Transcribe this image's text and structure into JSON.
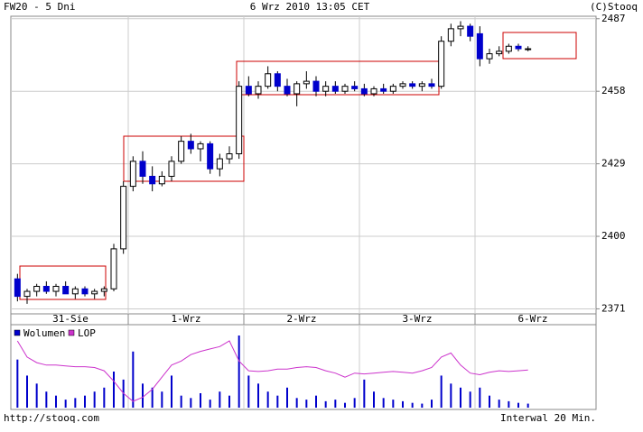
{
  "chart_data": {
    "type": "candlestick",
    "label_left": "FW20 - 5 Dni",
    "title": "6 Wrz 2010 13:05 CET",
    "label_right": "(C)Stooq",
    "footer_left": "http://stooq.com",
    "footer_right": "Interwal 20 Min.",
    "categories": [
      "31-Sie",
      "1-Wrz",
      "2-Wrz",
      "3-Wrz",
      "6-Wrz"
    ],
    "ylim": [
      2369,
      2488
    ],
    "yticks": [
      2371,
      2400,
      2429,
      2458,
      2487
    ],
    "grid": true,
    "up_color": "#ffffff",
    "down_color": "#0000cc",
    "open": [
      2383,
      2376,
      2378,
      2380,
      2378,
      2380,
      2377,
      2379,
      2377,
      2378,
      2379,
      2395,
      2420,
      2430,
      2424,
      2421,
      2424,
      2430,
      2438,
      2435,
      2437,
      2427,
      2431,
      2433,
      2460,
      2457,
      2460,
      2465,
      2460,
      2457,
      2461,
      2462,
      2458,
      2460,
      2458,
      2460,
      2459,
      2457,
      2459,
      2458,
      2460,
      2461,
      2460,
      2461,
      2460,
      2478,
      2483,
      2484,
      2481,
      2471,
      2473,
      2474,
      2476,
      2475
    ],
    "high": [
      2385,
      2379,
      2381,
      2382,
      2381,
      2382,
      2380,
      2380,
      2379,
      2380,
      2397,
      2422,
      2432,
      2434,
      2428,
      2426,
      2432,
      2440,
      2441,
      2438,
      2438,
      2433,
      2436,
      2462,
      2464,
      2462,
      2468,
      2466,
      2463,
      2462,
      2466,
      2464,
      2462,
      2462,
      2461,
      2462,
      2461,
      2460,
      2461,
      2461,
      2462,
      2462,
      2462,
      2463,
      2480,
      2485,
      2486,
      2485,
      2484,
      2475,
      2476,
      2477,
      2477,
      2476
    ],
    "low": [
      2374,
      2373,
      2376,
      2377,
      2376,
      2377,
      2375,
      2376,
      2375,
      2376,
      2378,
      2393,
      2418,
      2421,
      2418,
      2420,
      2422,
      2429,
      2433,
      2430,
      2425,
      2424,
      2429,
      2431,
      2456,
      2455,
      2459,
      2458,
      2456,
      2452,
      2459,
      2456,
      2456,
      2457,
      2457,
      2458,
      2456,
      2456,
      2457,
      2457,
      2459,
      2459,
      2458,
      2459,
      2459,
      2476,
      2480,
      2478,
      2468,
      2469,
      2472,
      2473,
      2474,
      2474
    ],
    "close": [
      2376,
      2378,
      2380,
      2378,
      2380,
      2377,
      2379,
      2377,
      2378,
      2379,
      2395,
      2420,
      2430,
      2424,
      2421,
      2424,
      2430,
      2438,
      2435,
      2437,
      2427,
      2431,
      2433,
      2460,
      2457,
      2460,
      2465,
      2460,
      2457,
      2461,
      2462,
      2458,
      2460,
      2458,
      2460,
      2459,
      2457,
      2459,
      2458,
      2460,
      2461,
      2460,
      2461,
      2460,
      2478,
      2483,
      2484,
      2480,
      2471,
      2473,
      2474,
      2476,
      2475,
      2475
    ],
    "volume": {
      "name": "Wolumen",
      "color": "#0000cc",
      "values": [
        60,
        40,
        30,
        20,
        15,
        10,
        12,
        15,
        20,
        25,
        45,
        35,
        70,
        30,
        25,
        20,
        40,
        15,
        12,
        18,
        10,
        20,
        15,
        90,
        40,
        30,
        20,
        15,
        25,
        12,
        10,
        15,
        8,
        10,
        6,
        12,
        35,
        20,
        12,
        10,
        8,
        6,
        5,
        10,
        40,
        30,
        25,
        20,
        25,
        15,
        10,
        8,
        6,
        5
      ]
    },
    "lop": {
      "name": "LOP",
      "color": "#cc33cc",
      "values": [
        85,
        65,
        58,
        55,
        55,
        54,
        53,
        53,
        52,
        48,
        35,
        20,
        10,
        15,
        25,
        40,
        55,
        60,
        68,
        72,
        75,
        78,
        85,
        60,
        48,
        47,
        48,
        50,
        50,
        52,
        53,
        52,
        48,
        45,
        40,
        45,
        44,
        45,
        46,
        47,
        46,
        45,
        48,
        52,
        65,
        70,
        55,
        45,
        43,
        46,
        48,
        47,
        48,
        49
      ]
    }
  }
}
